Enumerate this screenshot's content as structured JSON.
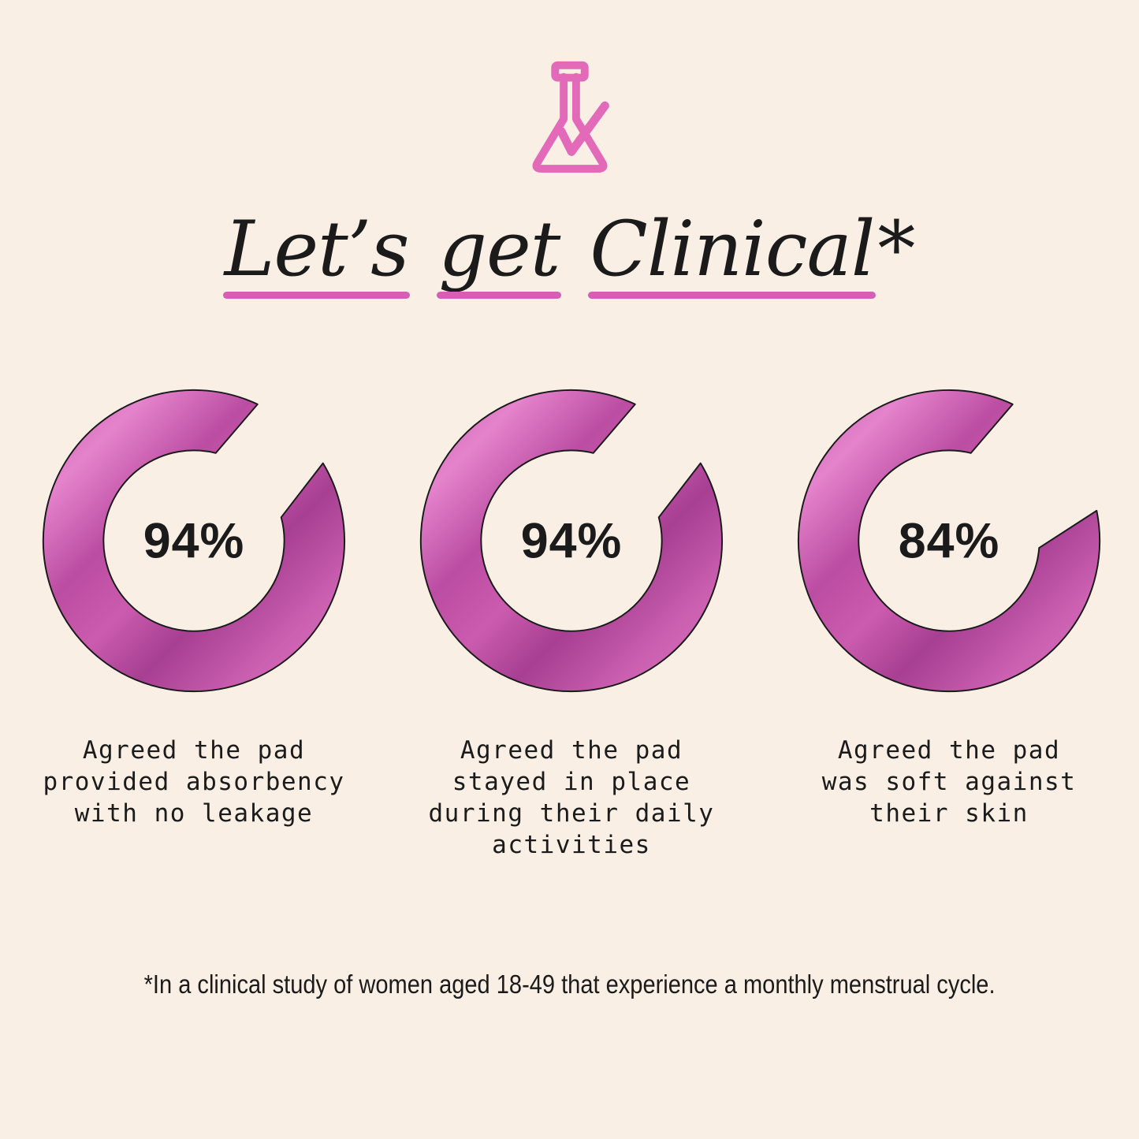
{
  "header": {
    "icon": "flask-check-icon"
  },
  "title": {
    "words": [
      "Let’s",
      "get",
      "Clinical"
    ],
    "asterisk": "*"
  },
  "chart_data": [
    {
      "type": "donut",
      "label": "94%",
      "value": 94,
      "max": 100,
      "caption": "Agreed the pad\nprovided absorbency\nwith no leakage"
    },
    {
      "type": "donut",
      "label": "94%",
      "value": 94,
      "max": 100,
      "caption": "Agreed the pad\nstayed in place\nduring their daily\nactivities"
    },
    {
      "type": "donut",
      "label": "84%",
      "value": 84,
      "max": 100,
      "caption": "Agreed the pad\nwas soft against\ntheir skin"
    }
  ],
  "footnote": "*In a clinical study of women aged 18-49 that experience a monthly menstrual cycle.",
  "colors": {
    "background": "#f9efe4",
    "ink": "#1b1b1b",
    "flask_pink": "#e36ab8",
    "underline_pink": "#d65fb5",
    "ring_gradient": [
      "#c95aad",
      "#e583cc",
      "#bb4da2",
      "#cb5bae",
      "#a73f92",
      "#cc60b1",
      "#d96fc0"
    ],
    "ring_outline": "#1b1b1b"
  }
}
